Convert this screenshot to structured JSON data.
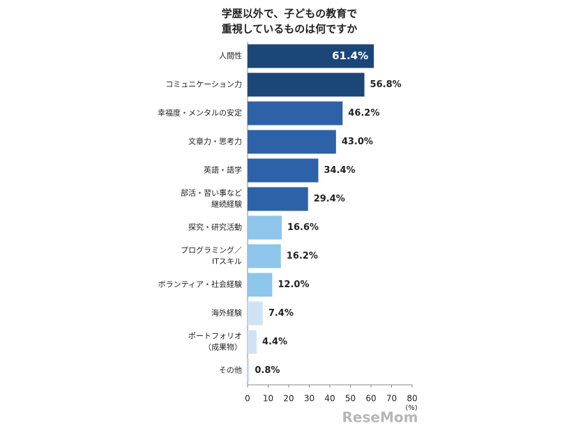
{
  "chart_data": {
    "type": "bar",
    "orientation": "horizontal",
    "title": [
      "学歴以外で、子どもの教育で",
      "重視しているものは何ですか"
    ],
    "categories": [
      "人間性",
      "コミュニケーション力",
      "幸福度・メンタルの安定",
      "文章力・思考力",
      "英語・語学",
      "部活・習い事など\n継続経験",
      "探究・研究活動",
      "プログラミング／\nITスキル",
      "ボランティア・社会経験",
      "海外経験",
      "ポートフォリオ\n（成果物）",
      "その他"
    ],
    "values": [
      61.4,
      56.8,
      46.2,
      43.0,
      34.4,
      29.4,
      16.6,
      16.2,
      12.0,
      7.4,
      4.4,
      0.8
    ],
    "value_labels": [
      "61.4%",
      "56.8%",
      "46.2%",
      "43.0%",
      "34.4%",
      "29.4%",
      "16.6%",
      "16.2%",
      "12.0%",
      "7.4%",
      "4.4%",
      "0.8%"
    ],
    "colors": [
      "#1b4778",
      "#1b4778",
      "#2e62a8",
      "#2e62a8",
      "#2e62a8",
      "#2e62a8",
      "#8ec5ea",
      "#8ec5ea",
      "#8ec5ea",
      "#cfe3f5",
      "#cfe3f5",
      "#cfe3f5"
    ],
    "xlim": [
      0,
      80
    ],
    "xticks": [
      0,
      10,
      20,
      30,
      40,
      50,
      60,
      70,
      80
    ],
    "x_unit": "(%)",
    "watermark": "ReseMom"
  }
}
